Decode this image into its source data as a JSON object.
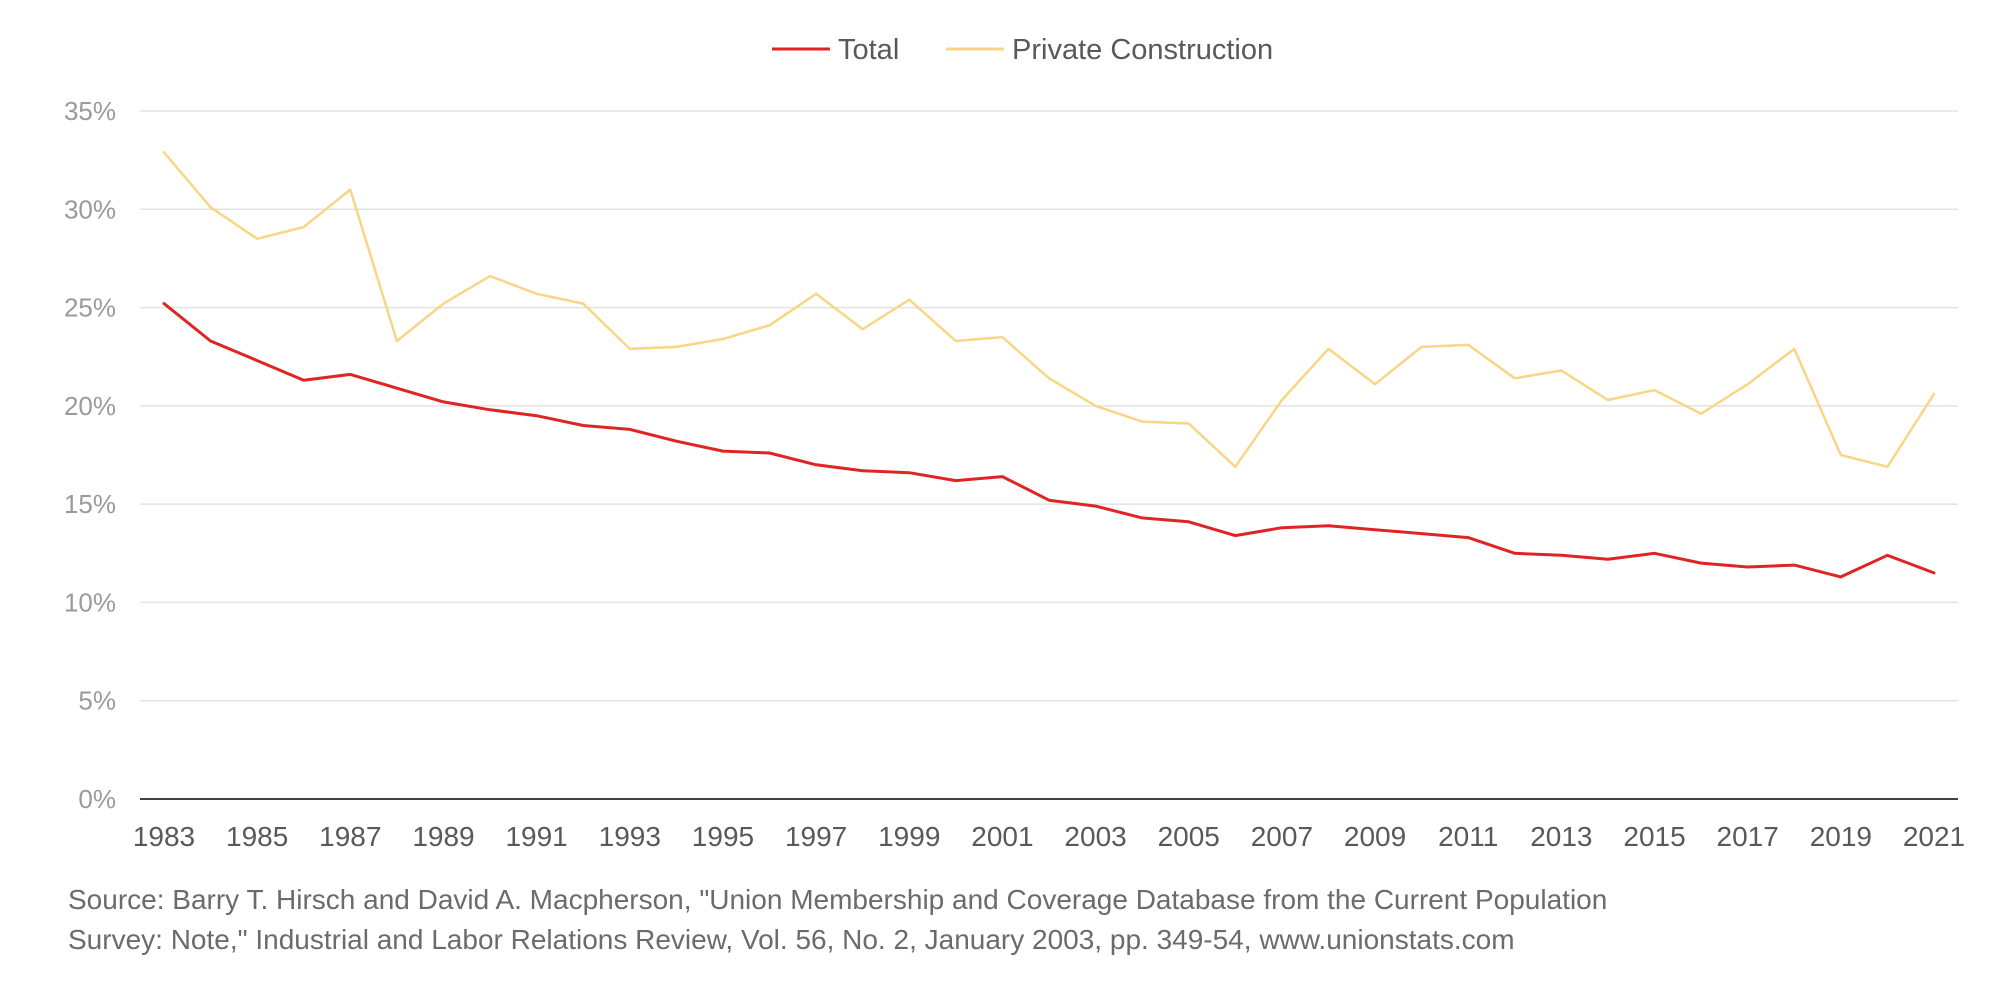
{
  "chart_data": {
    "type": "line",
    "title": "",
    "xlabel": "",
    "ylabel": "",
    "x": [
      1983,
      1984,
      1985,
      1986,
      1987,
      1988,
      1989,
      1990,
      1991,
      1992,
      1993,
      1994,
      1995,
      1996,
      1997,
      1998,
      1999,
      2000,
      2001,
      2002,
      2003,
      2004,
      2005,
      2006,
      2007,
      2008,
      2009,
      2010,
      2011,
      2012,
      2013,
      2014,
      2015,
      2016,
      2017,
      2018,
      2019,
      2020,
      2021
    ],
    "x_tick_labels": [
      "1983",
      "1985",
      "1987",
      "1989",
      "1991",
      "1993",
      "1995",
      "1997",
      "1999",
      "2001",
      "2003",
      "2005",
      "2007",
      "2009",
      "2011",
      "2013",
      "2015",
      "2017",
      "2019",
      "2021"
    ],
    "y_tick_labels": [
      "0%",
      "5%",
      "10%",
      "15%",
      "20%",
      "25%",
      "30%",
      "35%"
    ],
    "ylim": [
      0,
      35
    ],
    "grid": "horizontal",
    "legend_position": "top-center",
    "series": [
      {
        "name": "Total",
        "color": "#e02424",
        "values": [
          25.2,
          23.3,
          22.3,
          21.3,
          21.6,
          20.9,
          20.2,
          19.8,
          19.5,
          19.0,
          18.8,
          18.2,
          17.7,
          17.6,
          17.0,
          16.7,
          16.6,
          16.2,
          16.4,
          15.2,
          14.9,
          14.3,
          14.1,
          13.4,
          13.8,
          13.9,
          13.7,
          13.5,
          13.3,
          12.5,
          12.4,
          12.2,
          12.5,
          12.0,
          11.8,
          11.9,
          11.3,
          12.4,
          11.5
        ]
      },
      {
        "name": "Private Construction",
        "color": "#f8d686",
        "values": [
          32.9,
          30.1,
          28.5,
          29.1,
          31.0,
          23.3,
          25.2,
          26.6,
          25.7,
          25.2,
          22.9,
          23.0,
          23.4,
          24.1,
          25.7,
          23.9,
          25.4,
          23.3,
          23.5,
          21.4,
          20.0,
          19.2,
          19.1,
          16.9,
          20.3,
          22.9,
          21.1,
          23.0,
          23.1,
          21.4,
          21.8,
          20.3,
          20.8,
          19.6,
          21.1,
          22.9,
          17.5,
          16.9,
          20.6
        ]
      }
    ]
  },
  "source": {
    "line1": "Source: Barry T. Hirsch and David A. Macpherson, \"Union Membership and Coverage Database from the Current Population",
    "line2": "Survey: Note,\" Industrial and Labor Relations Review, Vol. 56, No. 2, January 2003, pp. 349-54, www.unionstats.com"
  }
}
